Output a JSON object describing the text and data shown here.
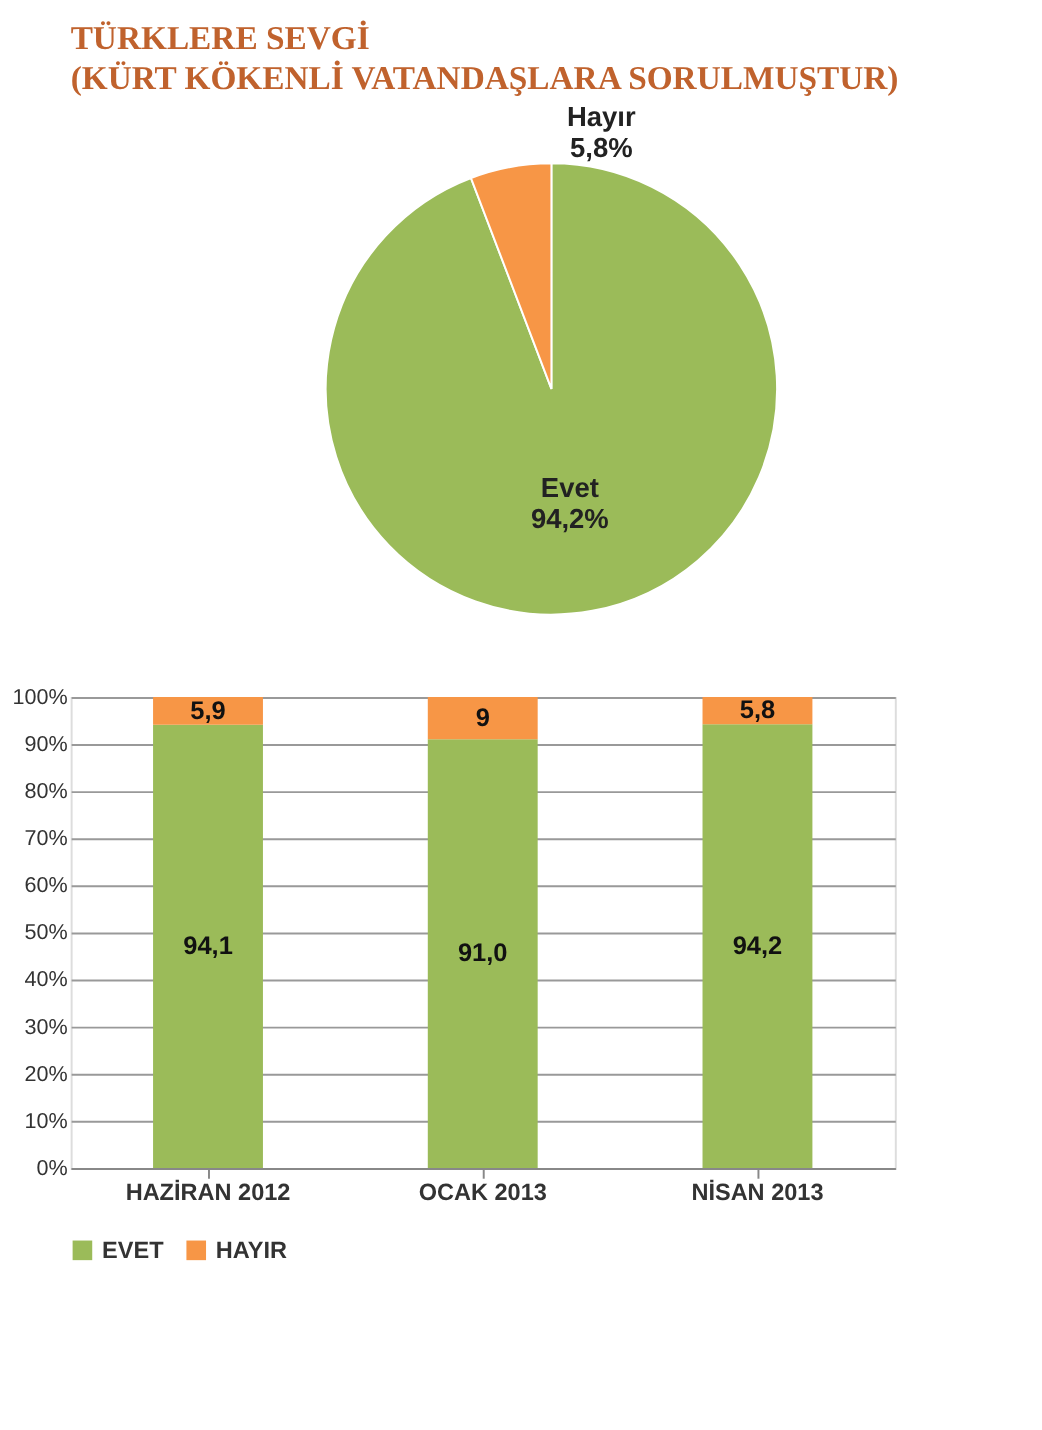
{
  "chart_data": [
    {
      "type": "pie",
      "title": "TÜRKLERE SEVGİ",
      "subtitle": "(KÜRT KÖKENLİ VATANDAŞLARA SORULMUŞTUR)",
      "categories": [
        "Evet",
        "Hayır"
      ],
      "values": [
        94.2,
        5.8
      ],
      "colors": [
        "#9bbb59",
        "#f79646"
      ],
      "value_labels": [
        "94,2%",
        "5,8%"
      ],
      "legend": false
    },
    {
      "type": "bar",
      "stacked": true,
      "categories": [
        "HAZİRAN  2012",
        "OCAK 2013",
        "NİSAN 2013"
      ],
      "series": [
        {
          "name": "EVET",
          "color": "#9bbb59",
          "values": [
            94.1,
            91.0,
            94.2
          ],
          "value_labels": [
            "94,1",
            "91,0",
            "94,2"
          ]
        },
        {
          "name": "HAYIR",
          "color": "#f79646",
          "values": [
            5.9,
            9,
            5.8
          ],
          "value_labels": [
            "5,9",
            "9",
            "5,8"
          ]
        }
      ],
      "ylim": [
        0,
        100
      ],
      "yticks": [
        {
          "value": 0,
          "label": "0%"
        },
        {
          "value": 10,
          "label": "10%"
        },
        {
          "value": 20,
          "label": "20%"
        },
        {
          "value": 30,
          "label": "30%"
        },
        {
          "value": 40,
          "label": "40%"
        },
        {
          "value": 50,
          "label": "50%"
        },
        {
          "value": 60,
          "label": "60%"
        },
        {
          "value": 70,
          "label": "70%"
        },
        {
          "value": 80,
          "label": "80%"
        },
        {
          "value": 90,
          "label": "90%"
        },
        {
          "value": 100,
          "label": "100%"
        }
      ],
      "grid": "y",
      "legend": "bottom"
    }
  ]
}
